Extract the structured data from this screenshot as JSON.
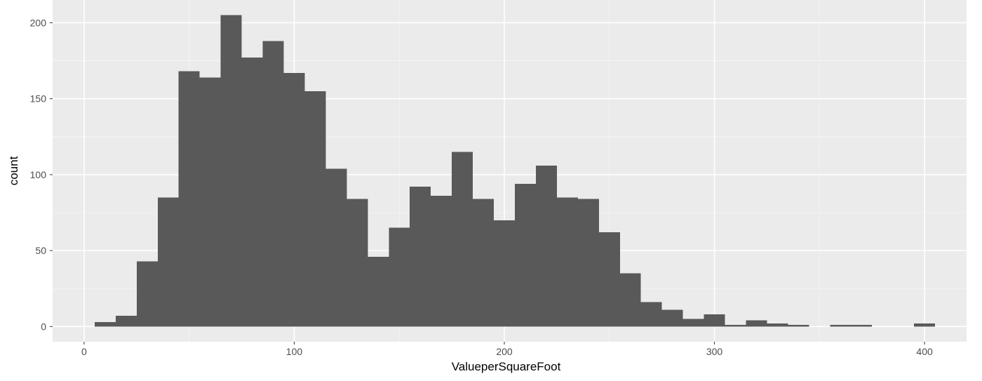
{
  "chart_data": {
    "type": "bar",
    "subtype": "histogram",
    "xlabel": "ValueperSquareFoot",
    "ylabel": "count",
    "xlim": [
      -15,
      420
    ],
    "ylim": [
      -10,
      215
    ],
    "x_ticks": [
      0,
      100,
      200,
      300,
      400
    ],
    "y_ticks": [
      0,
      50,
      100,
      150,
      200
    ],
    "x_tick_labels": [
      "0",
      "100",
      "200",
      "300",
      "400"
    ],
    "y_tick_labels": [
      "0",
      "50",
      "100",
      "150",
      "200"
    ],
    "bin_width": 10,
    "bin_starts": [
      5,
      15,
      25,
      35,
      45,
      55,
      65,
      75,
      85,
      95,
      105,
      115,
      125,
      135,
      145,
      155,
      165,
      175,
      185,
      195,
      205,
      215,
      225,
      235,
      245,
      255,
      265,
      275,
      285,
      295,
      305,
      315,
      325,
      335,
      345,
      355,
      365,
      375,
      385,
      395
    ],
    "values": [
      3,
      7,
      43,
      85,
      168,
      164,
      205,
      177,
      188,
      167,
      155,
      104,
      84,
      46,
      65,
      92,
      86,
      115,
      84,
      70,
      94,
      106,
      85,
      84,
      62,
      35,
      16,
      11,
      5,
      8,
      1,
      4,
      2,
      1,
      0,
      1,
      1,
      0,
      0,
      2
    ],
    "grid": true,
    "legend": "none",
    "colors": {
      "panel_background": "#ebebeb",
      "grid_major": "#ffffff",
      "grid_minor": "#f5f5f5",
      "bar_fill": "#595959"
    }
  }
}
